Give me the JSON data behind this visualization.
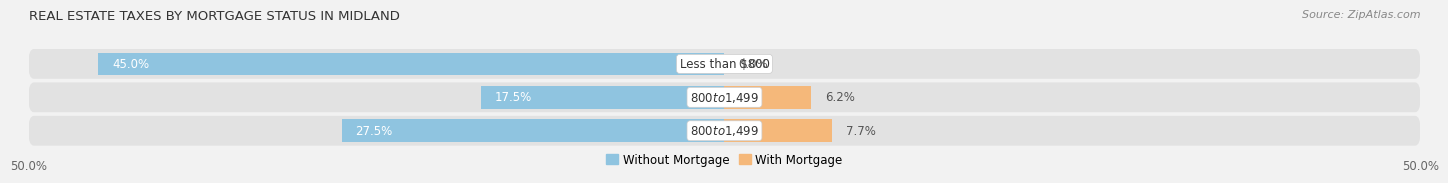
{
  "title": "REAL ESTATE TAXES BY MORTGAGE STATUS IN MIDLAND",
  "source": "Source: ZipAtlas.com",
  "categories": [
    "Less than $800",
    "$800 to $1,499",
    "$800 to $1,499"
  ],
  "without_mortgage": [
    45.0,
    17.5,
    27.5
  ],
  "with_mortgage": [
    0.0,
    6.2,
    7.7
  ],
  "bar_color_without": "#8fc4e0",
  "bar_color_with": "#f5b87a",
  "background_color": "#f2f2f2",
  "row_background": "#e4e4e4",
  "xlim": [
    -50,
    50
  ],
  "xtick_left": -50.0,
  "xtick_right": 50.0,
  "legend_labels": [
    "Without Mortgage",
    "With Mortgage"
  ],
  "title_fontsize": 9.5,
  "source_fontsize": 8,
  "label_fontsize": 8.5,
  "tick_fontsize": 8.5,
  "pct_label_color_left": "#555555",
  "pct_label_color_right": "#555555",
  "pct_label_color_inside_white": "white"
}
